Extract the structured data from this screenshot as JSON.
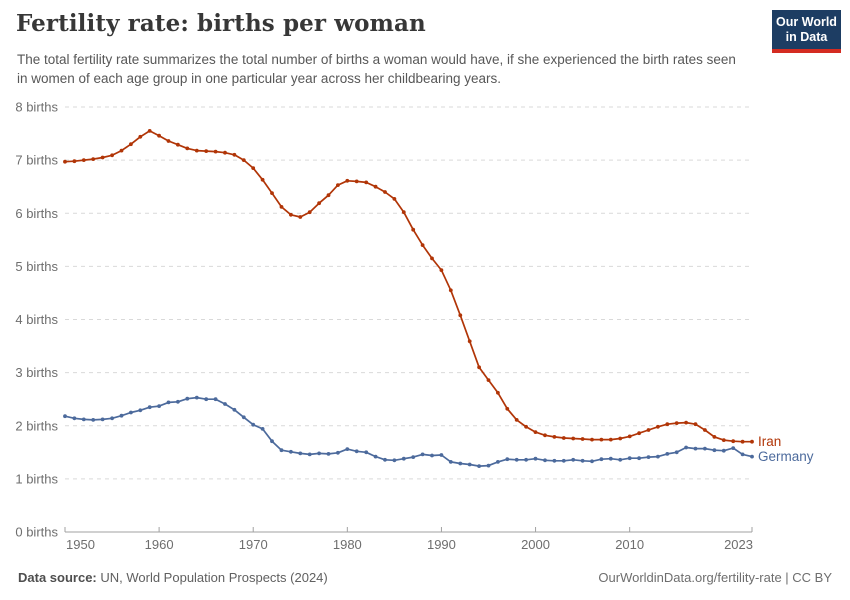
{
  "logo": {
    "line1": "Our World",
    "line2": "in Data",
    "bg": "#1d3d63",
    "bar": "#d42b21"
  },
  "footer": {
    "source_label": "Data source:",
    "source_value": " UN, World Population Prospects (2024)",
    "right": "OurWorldinData.org/fertility-rate | CC BY"
  },
  "chart_data": {
    "type": "line",
    "title": "Fertility rate: births per woman",
    "subtitle": "The total fertility rate summarizes the total number of births a woman would have, if she experienced the birth rates seen in women of each age group in one particular year across her childbearing years.",
    "xlabel": "",
    "ylabel": "",
    "ytick_suffix": " births",
    "grid": "horizontal-dashed",
    "legend_position": "right-end-labels",
    "markers": true,
    "xlim": [
      1950,
      2023
    ],
    "ylim": [
      0,
      8
    ],
    "yticks": [
      0,
      1,
      2,
      3,
      4,
      5,
      6,
      7,
      8
    ],
    "xticks": [
      1950,
      1960,
      1970,
      1980,
      1990,
      2000,
      2010,
      2023
    ],
    "x": [
      1950,
      1951,
      1952,
      1953,
      1954,
      1955,
      1956,
      1957,
      1958,
      1959,
      1960,
      1961,
      1962,
      1963,
      1964,
      1965,
      1966,
      1967,
      1968,
      1969,
      1970,
      1971,
      1972,
      1973,
      1974,
      1975,
      1976,
      1977,
      1978,
      1979,
      1980,
      1981,
      1982,
      1983,
      1984,
      1985,
      1986,
      1987,
      1988,
      1989,
      1990,
      1991,
      1992,
      1993,
      1994,
      1995,
      1996,
      1997,
      1998,
      1999,
      2000,
      2001,
      2002,
      2003,
      2004,
      2005,
      2006,
      2007,
      2008,
      2009,
      2010,
      2011,
      2012,
      2013,
      2014,
      2015,
      2016,
      2017,
      2018,
      2019,
      2020,
      2021,
      2022,
      2023
    ],
    "series": [
      {
        "name": "Iran",
        "color": "#b13507",
        "values": [
          6.97,
          6.98,
          7.0,
          7.02,
          7.05,
          7.09,
          7.18,
          7.3,
          7.44,
          7.55,
          7.46,
          7.36,
          7.29,
          7.22,
          7.18,
          7.17,
          7.16,
          7.14,
          7.1,
          7.0,
          6.85,
          6.63,
          6.38,
          6.12,
          5.97,
          5.93,
          6.02,
          6.19,
          6.34,
          6.53,
          6.61,
          6.6,
          6.58,
          6.5,
          6.4,
          6.27,
          6.02,
          5.69,
          5.4,
          5.15,
          4.93,
          4.55,
          4.08,
          3.59,
          3.1,
          2.86,
          2.62,
          2.32,
          2.11,
          1.98,
          1.88,
          1.82,
          1.79,
          1.77,
          1.76,
          1.75,
          1.74,
          1.74,
          1.74,
          1.76,
          1.8,
          1.86,
          1.92,
          1.98,
          2.03,
          2.05,
          2.06,
          2.03,
          1.92,
          1.79,
          1.73,
          1.71,
          1.7,
          1.7
        ]
      },
      {
        "name": "Germany",
        "color": "#4c6a9c",
        "values": [
          2.18,
          2.14,
          2.12,
          2.11,
          2.12,
          2.14,
          2.19,
          2.25,
          2.29,
          2.35,
          2.37,
          2.44,
          2.45,
          2.51,
          2.53,
          2.5,
          2.5,
          2.41,
          2.3,
          2.16,
          2.02,
          1.94,
          1.71,
          1.54,
          1.51,
          1.48,
          1.46,
          1.48,
          1.47,
          1.49,
          1.56,
          1.52,
          1.5,
          1.42,
          1.36,
          1.35,
          1.38,
          1.41,
          1.46,
          1.44,
          1.45,
          1.32,
          1.29,
          1.27,
          1.24,
          1.25,
          1.32,
          1.37,
          1.36,
          1.36,
          1.38,
          1.35,
          1.34,
          1.34,
          1.36,
          1.34,
          1.33,
          1.37,
          1.38,
          1.36,
          1.39,
          1.39,
          1.41,
          1.42,
          1.47,
          1.5,
          1.59,
          1.57,
          1.57,
          1.54,
          1.53,
          1.58,
          1.46,
          1.42
        ]
      }
    ]
  }
}
